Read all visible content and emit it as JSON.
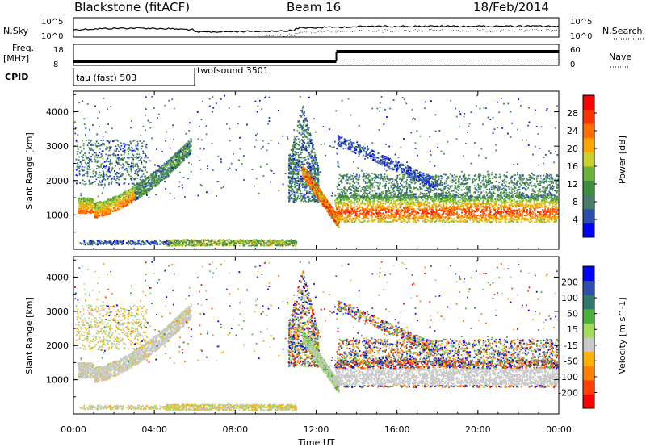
{
  "header": {
    "title": "Blackstone (fitACF)",
    "beam": "Beam 16",
    "date": "18/Feb/2014"
  },
  "summary": {
    "nsky_label": "N.Sky",
    "nsearch_label": "N.Search",
    "noise_ticks": [
      "10^5",
      "10^0"
    ],
    "freq_label_1": "Freq.",
    "freq_label_2": "[MHz]",
    "freq_ticks": [
      18,
      8
    ],
    "nave_label": "Nave",
    "nave_ticks": [
      60,
      0
    ],
    "cpid_label": "CPID",
    "cpid_segments": [
      {
        "label": "tau (fast) 503",
        "start": 0,
        "end": 6
      },
      {
        "label": "twofsound 3501",
        "start": 6,
        "end": 24
      }
    ],
    "freq_segments_mhz": [
      {
        "start": 0,
        "end": 13,
        "value": 10
      },
      {
        "start": 13,
        "end": 24,
        "value": 16
      }
    ]
  },
  "chart_data": [
    {
      "type": "heatmap",
      "name": "power",
      "ylabel": "Slant Range [km]",
      "colorbar_label": "Power [dB]",
      "colorbar_ticks": [
        28,
        24,
        20,
        16,
        12,
        8,
        4
      ],
      "colorbar_range": [
        0,
        32
      ],
      "colors": [
        "#0000ff",
        "#2b4fb0",
        "#4a7c6a",
        "#3c8f3c",
        "#6ab23a",
        "#c8d22a",
        "#ffa500",
        "#ff7000",
        "#ff3300",
        "#ff0000"
      ],
      "xlim": [
        0,
        24
      ],
      "ylim": [
        0,
        4600
      ],
      "yticks": [
        1000,
        2000,
        3000,
        4000
      ],
      "features": [
        {
          "t0": 0.1,
          "t1": 5.8,
          "r0": 1100,
          "r1": 2900,
          "p": 24
        },
        {
          "t0": 10.8,
          "t1": 13.0,
          "r0": 3000,
          "r1": 800,
          "p": 18
        },
        {
          "t0": 13.0,
          "t1": 24.0,
          "r0": 1100,
          "r1": 1100,
          "p": 20
        }
      ]
    },
    {
      "type": "heatmap",
      "name": "velocity",
      "ylabel": "Slant Range [km]",
      "colorbar_label": "Velocity [m s^-1]",
      "colorbar_ticks": [
        "200",
        "100",
        "50",
        "15",
        "-15",
        "-50",
        "-100",
        "-200"
      ],
      "colorbar_range": [
        -250,
        250
      ],
      "colors": [
        "#ff0000",
        "#ff4000",
        "#ff8000",
        "#ffb000",
        "#c8c8c8",
        "#a0dc5a",
        "#4bb33c",
        "#2f7a6e",
        "#2f4fb0",
        "#0000ff"
      ],
      "xlim": [
        0,
        24
      ],
      "ylim": [
        0,
        4600
      ],
      "yticks": [
        1000,
        2000,
        3000,
        4000
      ]
    }
  ],
  "xaxis": {
    "label": "Time UT",
    "ticks": [
      "00:00",
      "04:00",
      "08:00",
      "12:00",
      "16:00",
      "20:00",
      "00:00"
    ],
    "values": [
      0,
      4,
      8,
      12,
      16,
      20,
      24
    ]
  }
}
